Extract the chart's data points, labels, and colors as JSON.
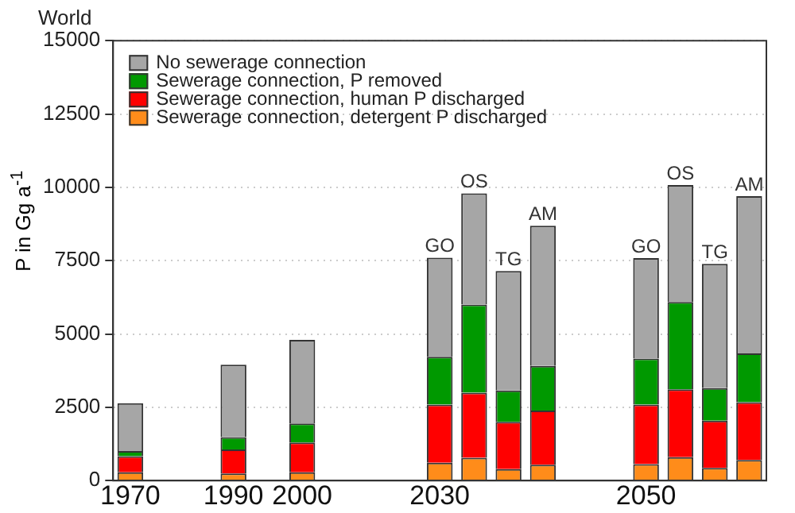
{
  "chart_data": {
    "type": "bar",
    "title": "World",
    "ylabel": "P in Gg a$^{-1}$",
    "stacked": true,
    "categories": [
      "1970",
      null,
      null,
      "1990",
      null,
      "2000",
      null,
      null,
      null,
      "2030",
      null,
      null,
      null,
      null,
      null,
      "2050",
      null,
      null,
      null
    ],
    "series": [
      {
        "name": "Sewerage connection, detergent P discharged",
        "color": "#ff8c1a",
        "values": [
          280,
          null,
          null,
          240,
          null,
          280,
          null,
          null,
          null,
          610,
          780,
          390,
          540,
          null,
          null,
          560,
          800,
          430,
          700
        ]
      },
      {
        "name": "Sewerage connection, human P discharged",
        "color": "#ff0000",
        "values": [
          550,
          null,
          null,
          820,
          null,
          1020,
          null,
          null,
          null,
          1980,
          2220,
          1610,
          1850,
          null,
          null,
          2030,
          2310,
          1610,
          1970
        ]
      },
      {
        "name": "Sewerage connection, P removed",
        "color": "#009900",
        "values": [
          180,
          null,
          null,
          420,
          null,
          650,
          null,
          null,
          null,
          1630,
          3000,
          1070,
          1520,
          null,
          null,
          1570,
          2980,
          1110,
          1670
        ]
      },
      {
        "name": "No sewerage connection",
        "color": "#a6a6a6",
        "values": [
          1630,
          null,
          null,
          2470,
          null,
          2850,
          null,
          null,
          null,
          3380,
          3790,
          4080,
          4780,
          null,
          null,
          3430,
          3990,
          4240,
          5360
        ],
        "value_labels": [
          null,
          null,
          null,
          null,
          null,
          null,
          null,
          null,
          null,
          "GO",
          "OS",
          "TG",
          "AM",
          null,
          null,
          "GO",
          "OS",
          "TG",
          "AM"
        ]
      }
    ],
    "ylim": [
      0,
      15000
    ],
    "yticks": [
      0,
      2500,
      5000,
      7500,
      10000,
      12500,
      15000
    ],
    "grid": "y",
    "legend": "top left"
  }
}
